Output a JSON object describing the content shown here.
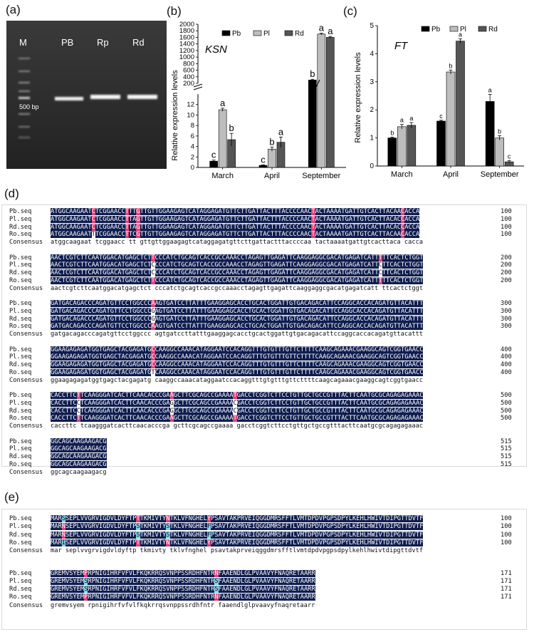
{
  "panels": {
    "a": "(a)",
    "b": "(b)",
    "c": "(c)",
    "d": "(d)",
    "e": "(e)"
  },
  "gel": {
    "lanes": [
      "M",
      "PB",
      "Rp",
      "Rd"
    ],
    "marker": "500 bp"
  },
  "chart_data": [
    {
      "type": "bar",
      "title": "KSN",
      "ylabel": "Relative expression levels",
      "categories": [
        "March",
        "April",
        "September"
      ],
      "series": [
        {
          "name": "Pb",
          "values": [
            1.2,
            0.4,
            300
          ],
          "errors": [
            0.2,
            0.1,
            25
          ],
          "letters": [
            "c",
            "c",
            "b"
          ]
        },
        {
          "name": "Pl",
          "values": [
            11.0,
            3.5,
            1700
          ],
          "errors": [
            0.3,
            0.4,
            25
          ],
          "letters": [
            "a",
            "b",
            "a"
          ]
        },
        {
          "name": "Rd",
          "values": [
            5.3,
            4.8,
            1600
          ],
          "errors": [
            1.2,
            1.0,
            30
          ],
          "letters": [
            "b",
            "a",
            "a"
          ]
        }
      ],
      "yaxis_lower": {
        "ylim": [
          0,
          14
        ],
        "ticks": [
          0,
          2,
          4,
          6,
          8,
          10,
          12
        ]
      },
      "yaxis_upper": {
        "ylim": [
          200,
          2000
        ],
        "ticks": [
          200,
          400,
          600,
          800,
          1000,
          1200,
          1400,
          1600,
          1800,
          2000
        ]
      },
      "legend": [
        "Pb",
        "Pl",
        "Rd"
      ],
      "colors": {
        "Pb": "#000000",
        "Pl": "#bdbdbd",
        "Rd": "#555555"
      }
    },
    {
      "type": "bar",
      "title": "FT",
      "ylabel": "Relative expression levels",
      "categories": [
        "March",
        "April",
        "September"
      ],
      "series": [
        {
          "name": "Pb",
          "values": [
            1.0,
            1.6,
            2.3
          ],
          "errors": [
            0.03,
            0.03,
            0.25
          ],
          "letters": [
            "b",
            "c",
            "a"
          ]
        },
        {
          "name": "Pl",
          "values": [
            1.4,
            3.35,
            1.0
          ],
          "errors": [
            0.08,
            0.07,
            0.08
          ],
          "letters": [
            "a",
            "b",
            "b"
          ]
        },
        {
          "name": "Rd",
          "values": [
            1.45,
            4.45,
            0.15
          ],
          "errors": [
            0.1,
            0.08,
            0.04
          ],
          "letters": [
            "a",
            "a",
            "c"
          ]
        }
      ],
      "ylim": [
        0,
        5
      ],
      "ticks": [
        0,
        1,
        2,
        3,
        4,
        5
      ],
      "legend": [
        "Pb",
        "Pl",
        "Rd"
      ],
      "colors": {
        "Pb": "#000000",
        "Pl": "#bdbdbd",
        "Rd": "#555555"
      }
    }
  ],
  "alignment_d": {
    "names": [
      "Pb.seq",
      "Pl.seq",
      "Rd.seq",
      "Ro.seq"
    ],
    "consensus_label": "Consensus",
    "blocks": [
      {
        "seqs": [
          "ATGGCAAGAATCTCGGAACCTTTGTTGTTGGAAGAGTCATAGGAGATGTTCTTGATTACTTTACCCCAACTACTAAAATGATTGTCACTTACAACACCA",
          "ATGGCAAGAATCTCGGAACCTTAGTTGTTGGAAGAGTCATAGGAGATGTTCTTGATTACTTTACCCCAACTACTAAAATGATTGTCACTTACACCACCA",
          "ATGGCAAGAATCTCGGAACCTTAGTTGTTGGAAGAGTCATAGGAGATGTTCTTGATTACTTTACCCCAACTACTAAAATGATTGTCACTTACACCACCA",
          "ATGGCAAGAATTTCGGAACCTTCGTTGTTGGAAGAGTCATAGGAGATGTTCTTGATTACTTTACCCCAACTACTAAAATGATTGTCACTTACAACACCA"
        ],
        "consensus": "atggcaagaat tcggaacc tt gttgttggaagagtcataggagatgttcttgattactttaccccaa tactaaaatgattgtcacttaca cacca",
        "num": "100"
      },
      {
        "seqs": [
          "AACTCGTCTTCAATGGACATGAGCTCTTCCCATCTGCAGTCACCGCCAAACCTAGAGTTGAGATTCAAGGAGGCGACATGAGATCATTTTTCACTCTGGT",
          "AACTCGTCTTCAATGGACATGAGCTCTCCCCATCTGCAGTCACCGCCAAACCTAGAGTTGAGATTCAAGGAGGCGACATGAGATCATTCTTCACTCTGGT",
          "AACTCGTCTTCAATGGACATGAGCTCTCCCCATCTGCAGTCACCGCCAAACCTAGAGTTGAGATTCAAGGAGGCGACATGAGATCATTCTTCACTCTGGT",
          "AACTCGTCTTCAATGGACATGAGCTCTTCCCATCTGCAGTCACCGCCAAACCTAGAGTTGAGATTCAAGGAGGCGACATGAGATCATTTTTCACTCTGGT"
        ],
        "consensus": "aactcgtcttcaatggacatgagctct cccatctgcagtcaccgccaaacctagagttgagattcaaggaggcgacatgagatcatt ttcactctggt",
        "num": "200"
      },
      {
        "seqs": [
          "GATGACAGACCCAGATGTTCCTGGCCCAAGTGATCCTTATTTGAAGGAGCACCTGCACTGGATTGTGACAGACATTCCAGGCACCACAGATGTTACATTT",
          "GATGACAGACCCAGATGTTCCTGGCCCGAGTGATCCTTATTTGAAGGAGCACCTGCACTGGATTGTGACAGACATTCCAGGCACCACAGATGTTACATTT",
          "GATGACAGACCCAGATGTTCCTGGCCCGAGTGATCCTTATTTGAAGGAGCACCTGCACTGGATTGTGACAGACATTCCAGGCACCACAGATGTTACATTT",
          "GATGACAGACCCAGATGTTCCTGGCCCAAGTGATCCTTATTTGAAGGAGCACCTGCACTGGATTGTGACAGACATTCCAGGCACCACAGATGTTACATTT"
        ],
        "consensus": "gatgacagacccagatgttcctggccc agtgatccttatttgaaggagcacctgcactggattgtgacagacattccaggcaccacagatgttacattt",
        "num": "300"
      },
      {
        "seqs": [
          "GGAAGAGAGATGGTGAGCTACGAGATGCCAAGGCCAAACATAGGAATCCACAGGTTTGTGTTTGTTCTTTTCAAGCAGAAACGAAGGCAGTCGGTGAACC",
          "GGAAGAGAGATGGTGAGCTACGAGATGCCAAGGCCAAACATAGGAATCCACAGGTTTGTGTTTGTTCTTTTCAAGCAGAAACGAAGGCAGTCGGTGAACC",
          "GGAAGAGAGATGGTGAGCTACGAGATGCCAAGGCCAAACATAGGAATCCACAGGTTTGTGTTTGTTCTTTTCAAGCAGAAACGAAGGCAGTCGGTGAACC",
          "GGAAGAGAGATGGTGAGCTACGAGATGTCAAGGCCAAACATAGGAATCCACAGGTTTGTGTTTGTTCTTTTCAAGCAGAAACGAAGGCAGTCGGTGAACC"
        ],
        "consensus": "ggaagagagatggtgagctacgagatg caaggccaaacataggaatccacaggtttgtgtttgttcttttcaagcagaaacgaaggcagtcggtgaacc",
        "num": "400"
      },
      {
        "seqs": [
          "CACCTTCTTCAAGGGATCACTTCAACACCCGAAGCTTCGCAGCCGAAAATGACCTCGGTCTTCCTGTTGCTGCCGTTTACTTCAATGCGCAGAGAGAAAC",
          "CACCTTCCTCAAGGGATCACTTCAACACCCGAGGCTTCGCAGCCGAAAACGACCTCGGTCTTCCTGTTGCTGCCGTTTACTTCAATGCGCAGAGAGAAAC",
          "CACCTTCCTCAAGGGATCACTTCAACACCCGAGGCTTCGCAGCCGAAAACGACCTCGGTCTTCCTGTTGCTGCCGTTTACTTCAATGCGCAGAGAGAAAC",
          "CACCTTCTTCAAGGGATCACTTCAACACCCGAAGCTTCGCAGCCGAAAATGACCTCGGTCTTCCTGTTGCTGCCGTTTACTTCAATGCGCAGAGAGAAAC"
        ],
        "consensus": "caccttc tcaagggatcacttcaacacccga gcttcgcagccgaaaa gacctcggtcttcctgttgctgccgtttacttcaatgcgcagagagaaac",
        "num": "500"
      },
      {
        "seqs": [
          "GGCAGCAAGAAGACG",
          "GGCAGCAAGAAGACG",
          "GGCAGCAAGAAGACG",
          "GGCAGCAAGAAGACG"
        ],
        "consensus": "ggcagcaagaagacg",
        "num": "515"
      }
    ]
  },
  "alignment_e": {
    "names": [
      "Pb.seq",
      "Pl.seq",
      "Rd.seq",
      "Ro.seq"
    ],
    "consensus_label": "Consensus",
    "blocks": [
      {
        "seqs": [
          "MARSSEPLVVGRVIGDVLDYFTPTTKMIVTYNTKLVFNGHELYPSAVTAKPRVEIQGGDMRSFFTLVMTDPDVPGPSDPYLKEHLHWIVTDIPGTTDVTF",
          "MARNSEPLVVGRVIGDVLDYFTPSTKMIVTYSTKLVFNGHELFPSAVTAKPRVEIQGGDMRSFFTLVMTDPDVPGPSDPYLKEHLHWIVTDIPGTTDVTF",
          "MARNSEPLVVGRVIGDVLDYFTPSTKMIVTYSTKLVFNGHELFPSAVTAKPRVEIQGGDMRSFFTLVMTDPDVPGPSDPYLKEHLHWIVTDIPGTTDVTF",
          "MARISEPLVVGRVIGDVLDYFTPTTKMIVTYNTKLVFNGHELYPSAVTAKPRVEIQGGDMRSFFTLVMTDPDVPGPSDPYLKEHLHWIVTDIPGTTDVTF"
        ],
        "consensus": "mar seplvvgrvigdvldyftp tkmivty tklvfnghel psavtakprveiqggdmrsfftlvmtdpdvpgpsdpylkehlhwivtdipgttdvtf",
        "num": "100"
      },
      {
        "seqs": [
          "GREMVSYEMPRPNIGIHRFVFVLFKQKRRQSVNPPSSRDHFNTRNFAAENDLGLPVAAVYFNAQRETAARR",
          "GREMVSYEMSRPNIGIHRFVFVLFKQKRRQSVNPPSSRDHFNTRSFAAENDLGLPVAAVYFNAQRETAARR",
          "GREMVSYEMSRPNIGIHRFVFVLFKQKRRQSVNPPSSRDHFNTRSFAAENDLGLPVAAVYFNAQRETAARR",
          "GREMVSYEMPRPNIGIHRFVFVLFKQKRRQSVNPPSSRDHFNTRNFAAENDLGLPVAAVYFNAQRETAARR"
        ],
        "consensus": "gremvsyem rpnigihrfvfvlfkqkrrqsvnppssrdhfntr faaendlglpvaavyfnaqretaarr",
        "num": "171"
      }
    ]
  }
}
